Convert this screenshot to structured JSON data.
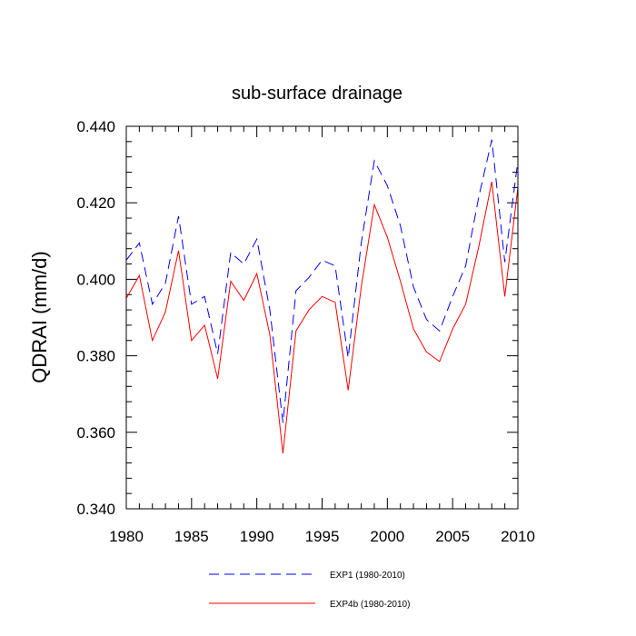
{
  "chart_data": {
    "type": "line",
    "title": "sub-surface drainage",
    "xlabel": "",
    "ylabel": "QDRAI  (mm/d)",
    "xlim": [
      1980,
      2010
    ],
    "ylim": [
      0.34,
      0.44
    ],
    "x_ticks": [
      "1980",
      "1985",
      "1990",
      "1995",
      "2000",
      "2005",
      "2010"
    ],
    "y_ticks": [
      "0.340",
      "0.360",
      "0.380",
      "0.400",
      "0.420",
      "0.440"
    ],
    "legend_position": "bottom",
    "x": [
      1980,
      1981,
      1982,
      1983,
      1984,
      1985,
      1986,
      1987,
      1988,
      1989,
      1990,
      1991,
      1992,
      1993,
      1994,
      1995,
      1996,
      1997,
      1998,
      1999,
      2000,
      2001,
      2002,
      2003,
      2004,
      2005,
      2006,
      2007,
      2008,
      2009,
      2010
    ],
    "series": [
      {
        "name": "EXP1 (1980-2010)",
        "color": "#0000ff",
        "dash": "dashed",
        "values": [
          0.405,
          0.4095,
          0.3935,
          0.399,
          0.4165,
          0.3935,
          0.3955,
          0.3805,
          0.407,
          0.404,
          0.4105,
          0.392,
          0.3625,
          0.397,
          0.4005,
          0.405,
          0.4035,
          0.3795,
          0.4095,
          0.431,
          0.4245,
          0.414,
          0.398,
          0.3895,
          0.3865,
          0.3955,
          0.4035,
          0.4215,
          0.4365,
          0.4045,
          0.431
        ]
      },
      {
        "name": "EXP4b (1980-2010)",
        "color": "#ff0000",
        "dash": "solid",
        "values": [
          0.395,
          0.401,
          0.384,
          0.3915,
          0.4075,
          0.384,
          0.388,
          0.374,
          0.3995,
          0.3945,
          0.4015,
          0.3855,
          0.3545,
          0.3865,
          0.392,
          0.3955,
          0.394,
          0.371,
          0.398,
          0.4195,
          0.411,
          0.3995,
          0.387,
          0.381,
          0.3785,
          0.387,
          0.3935,
          0.4085,
          0.4255,
          0.3955,
          0.424
        ]
      }
    ]
  }
}
